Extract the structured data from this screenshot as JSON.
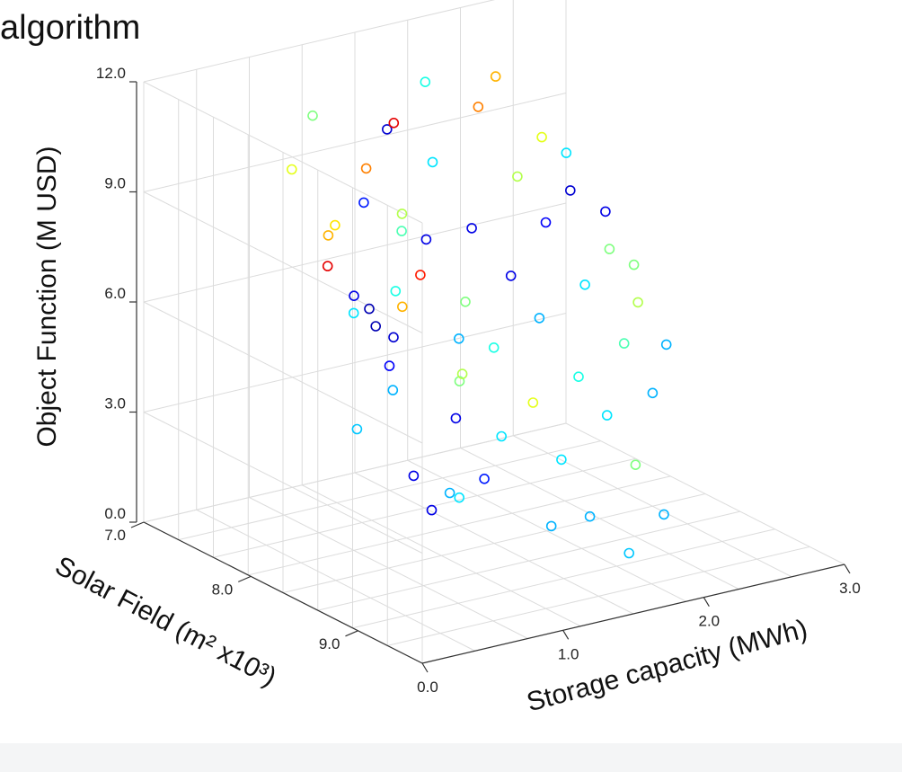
{
  "title": "algorithm",
  "chart_data": {
    "type": "scatter",
    "projection": "3d",
    "xlabel": "Storage capacity (MWh)",
    "ylabel": "Solar Field (m² x10³)",
    "zlabel": "Object Function (M USD)",
    "xlim": [
      0,
      3
    ],
    "ylim": [
      7,
      9.6
    ],
    "zlim": [
      0,
      12
    ],
    "x_ticks": [
      "0.0",
      "1.0",
      "2.0",
      "3.0"
    ],
    "y_ticks": [
      "7.0",
      "8.0",
      "9.0"
    ],
    "z_ticks": [
      "0.0",
      "3.0",
      "6.0",
      "9.0",
      "12.0"
    ],
    "marker": "open-circle",
    "colormap": "jet",
    "grid": true,
    "points": [
      {
        "x": 0.05,
        "y": 9.1,
        "z": 8.4,
        "c": 0.05
      },
      {
        "x": 0.08,
        "y": 9.0,
        "z": 8.7,
        "c": 0.05
      },
      {
        "x": 0.1,
        "y": 9.2,
        "z": 8.2,
        "c": 0.08
      },
      {
        "x": 0.3,
        "y": 8.9,
        "z": 6.8,
        "c": 0.12
      },
      {
        "x": 0.2,
        "y": 8.7,
        "z": 8.5,
        "c": 0.1
      },
      {
        "x": 0.35,
        "y": 8.5,
        "z": 7.6,
        "c": 0.35
      },
      {
        "x": 0.4,
        "y": 8.8,
        "z": 5.9,
        "c": 0.3
      },
      {
        "x": 0.5,
        "y": 9.2,
        "z": 3.6,
        "c": 0.3
      },
      {
        "x": 0.45,
        "y": 8.4,
        "z": 4.2,
        "c": 0.32
      },
      {
        "x": 0.6,
        "y": 8.9,
        "z": 2.6,
        "c": 0.1
      },
      {
        "x": 0.7,
        "y": 8.6,
        "z": 3.0,
        "c": 0.1
      },
      {
        "x": 0.55,
        "y": 8.0,
        "z": 8.8,
        "c": 0.7
      },
      {
        "x": 0.65,
        "y": 8.2,
        "z": 9.9,
        "c": 0.15
      },
      {
        "x": 0.8,
        "y": 8.3,
        "z": 7.5,
        "c": 0.4
      },
      {
        "x": 0.9,
        "y": 8.4,
        "z": 8.0,
        "c": 0.85
      },
      {
        "x": 0.75,
        "y": 7.8,
        "z": 8.6,
        "c": 0.65
      },
      {
        "x": 0.85,
        "y": 7.6,
        "z": 7.1,
        "c": 0.9
      },
      {
        "x": 0.95,
        "y": 8.7,
        "z": 5.5,
        "c": 0.5
      },
      {
        "x": 1.0,
        "y": 8.6,
        "z": 4.3,
        "c": 0.1
      },
      {
        "x": 1.05,
        "y": 8.8,
        "z": 2.9,
        "c": 0.15
      },
      {
        "x": 1.1,
        "y": 8.5,
        "z": 1.9,
        "c": 0.35
      },
      {
        "x": 1.0,
        "y": 8.1,
        "z": 6.6,
        "c": 0.7
      },
      {
        "x": 1.15,
        "y": 7.9,
        "z": 8.7,
        "c": 0.55
      },
      {
        "x": 1.2,
        "y": 7.5,
        "z": 9.3,
        "c": 0.75
      },
      {
        "x": 1.3,
        "y": 7.7,
        "z": 7.8,
        "c": 0.45
      },
      {
        "x": 1.25,
        "y": 8.3,
        "z": 5.8,
        "c": 0.3
      },
      {
        "x": 1.35,
        "y": 8.2,
        "z": 4.6,
        "c": 0.55
      },
      {
        "x": 1.4,
        "y": 8.5,
        "z": 3.3,
        "c": 0.35
      },
      {
        "x": 1.45,
        "y": 8.9,
        "z": 1.4,
        "c": 0.3
      },
      {
        "x": 1.5,
        "y": 7.3,
        "z": 9.8,
        "c": 0.08
      },
      {
        "x": 1.55,
        "y": 7.6,
        "z": 7.2,
        "c": 0.1
      },
      {
        "x": 1.6,
        "y": 7.9,
        "z": 5.9,
        "c": 0.5
      },
      {
        "x": 1.65,
        "y": 8.1,
        "z": 4.9,
        "c": 0.4
      },
      {
        "x": 1.7,
        "y": 8.4,
        "z": 3.8,
        "c": 0.6
      },
      {
        "x": 1.75,
        "y": 8.6,
        "z": 2.5,
        "c": 0.35
      },
      {
        "x": 1.8,
        "y": 8.8,
        "z": 1.2,
        "c": 0.3
      },
      {
        "x": 1.85,
        "y": 9.1,
        "z": 0.6,
        "c": 0.32
      },
      {
        "x": 1.9,
        "y": 7.2,
        "z": 8.4,
        "c": 0.35
      },
      {
        "x": 1.95,
        "y": 7.5,
        "z": 7.0,
        "c": 0.1
      },
      {
        "x": 2.0,
        "y": 7.8,
        "z": 6.1,
        "c": 0.1
      },
      {
        "x": 2.05,
        "y": 8.0,
        "z": 5.2,
        "c": 0.3
      },
      {
        "x": 2.1,
        "y": 8.3,
        "z": 4.0,
        "c": 0.4
      },
      {
        "x": 2.15,
        "y": 8.5,
        "z": 3.2,
        "c": 0.35
      },
      {
        "x": 2.2,
        "y": 8.7,
        "z": 2.1,
        "c": 0.5
      },
      {
        "x": 2.25,
        "y": 8.9,
        "z": 1.0,
        "c": 0.3
      },
      {
        "x": 2.3,
        "y": 7.1,
        "z": 9.4,
        "c": 0.75
      },
      {
        "x": 2.35,
        "y": 7.4,
        "z": 7.9,
        "c": 0.55
      },
      {
        "x": 2.4,
        "y": 7.6,
        "z": 6.9,
        "c": 0.12
      },
      {
        "x": 2.45,
        "y": 7.9,
        "z": 5.6,
        "c": 0.35
      },
      {
        "x": 2.5,
        "y": 8.2,
        "z": 4.4,
        "c": 0.45
      },
      {
        "x": 2.55,
        "y": 8.4,
        "z": 3.3,
        "c": 0.3
      },
      {
        "x": 2.6,
        "y": 7.3,
        "z": 8.6,
        "c": 0.6
      },
      {
        "x": 2.65,
        "y": 7.5,
        "z": 7.4,
        "c": 0.08
      },
      {
        "x": 2.7,
        "y": 7.8,
        "z": 6.2,
        "c": 0.5
      },
      {
        "x": 2.75,
        "y": 8.0,
        "z": 5.0,
        "c": 0.55
      },
      {
        "x": 2.8,
        "y": 8.2,
        "z": 4.1,
        "c": 0.3
      },
      {
        "x": 2.85,
        "y": 7.2,
        "z": 7.8,
        "c": 0.35
      },
      {
        "x": 2.9,
        "y": 7.5,
        "z": 6.6,
        "c": 0.1
      },
      {
        "x": 2.95,
        "y": 7.7,
        "z": 5.4,
        "c": 0.5
      },
      {
        "x": 2.0,
        "y": 7.0,
        "z": 10.2,
        "c": 0.4
      },
      {
        "x": 1.7,
        "y": 7.1,
        "z": 9.5,
        "c": 0.9
      },
      {
        "x": 2.5,
        "y": 7.0,
        "z": 9.9,
        "c": 0.7
      },
      {
        "x": 1.2,
        "y": 7.0,
        "z": 10.0,
        "c": 0.5
      },
      {
        "x": 0.9,
        "y": 7.2,
        "z": 9.1,
        "c": 0.6
      }
    ]
  },
  "footer": {}
}
